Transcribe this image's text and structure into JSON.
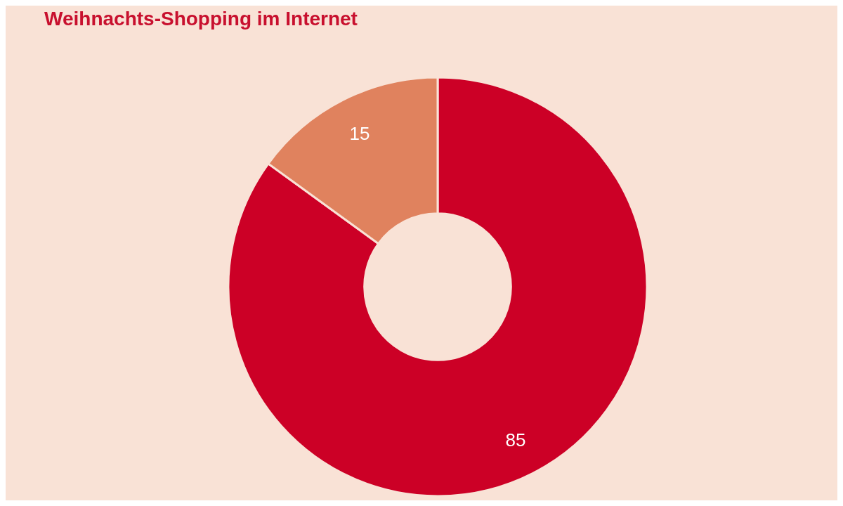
{
  "chart_data": {
    "type": "donut",
    "title": "Weihnachts-Shopping im Internet",
    "categories": [
      null,
      null
    ],
    "values": [
      85,
      15
    ],
    "colors": [
      "#cc0026",
      "#e0825e"
    ],
    "data_labels": true
  }
}
